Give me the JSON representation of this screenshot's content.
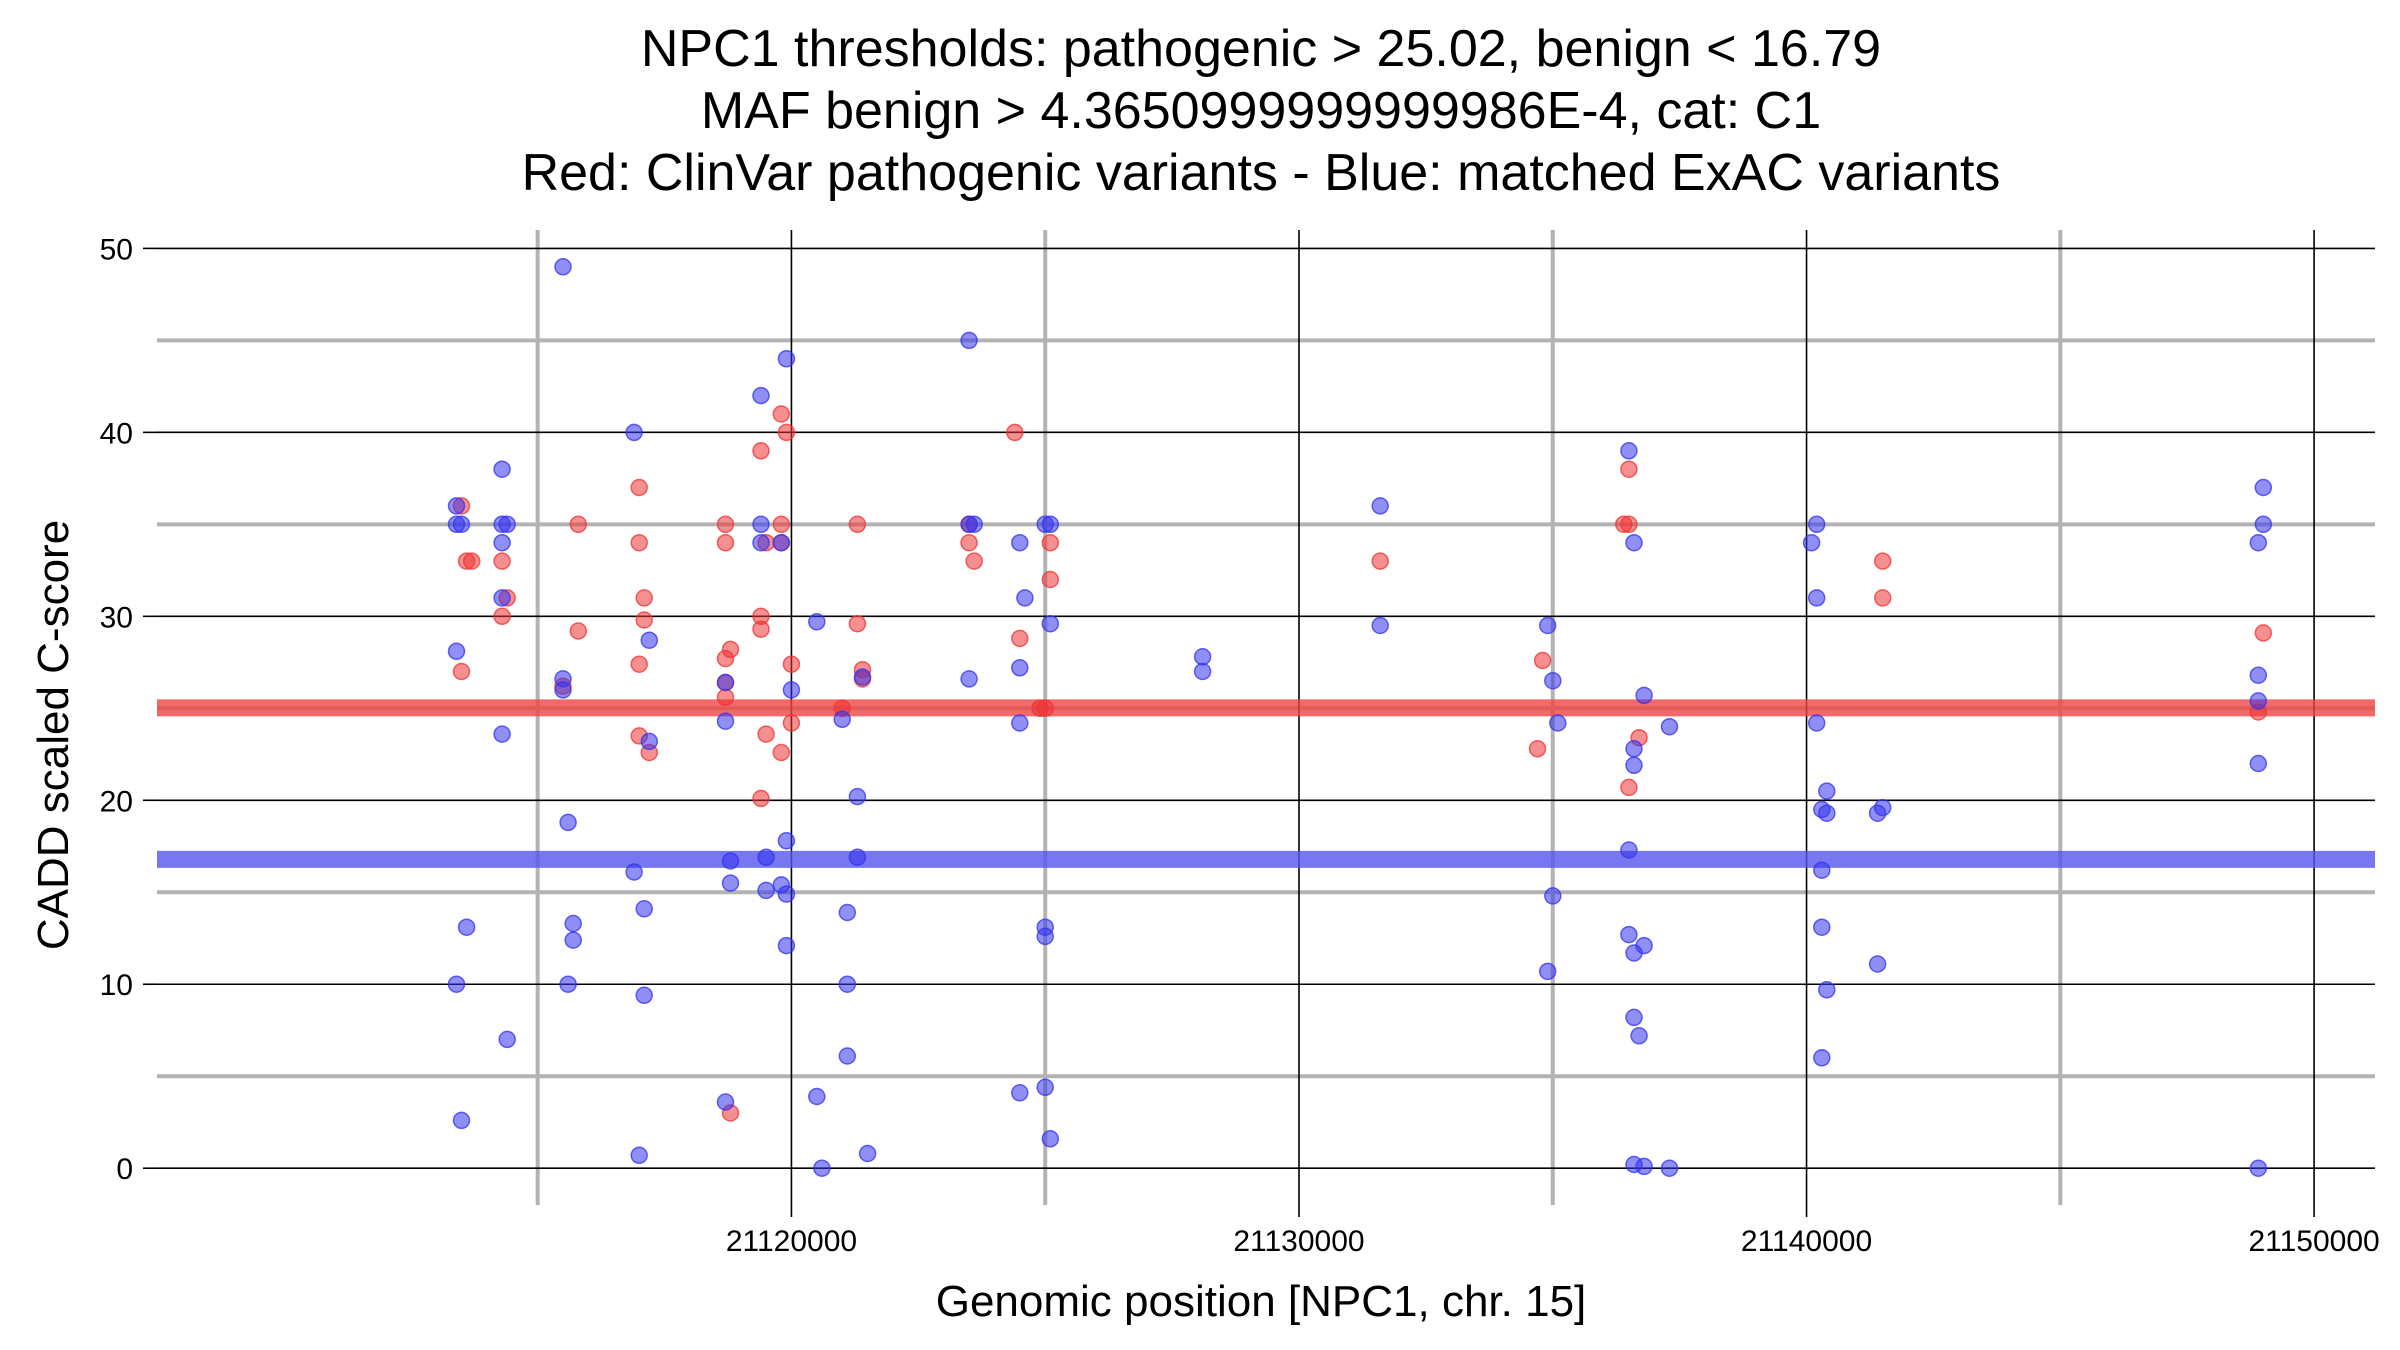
{
  "chart_data": {
    "type": "scatter",
    "title_lines": [
      "NPC1 thresholds: pathogenic > 25.02, benign < 16.79",
      "MAF benign > 4.3650999999999986E-4, cat: C1",
      "Red: ClinVar pathogenic variants - Blue: matched ExAC variants"
    ],
    "xlabel": "Genomic position [NPC1, chr. 15]",
    "ylabel": "CADD scaled C-score",
    "xlim": [
      21107500,
      21151200
    ],
    "ylim": [
      -2,
      51
    ],
    "x_ticks": [
      {
        "value": 21120000,
        "label": "21120000"
      },
      {
        "value": 21130000,
        "label": "21130000"
      },
      {
        "value": 21140000,
        "label": "21140000"
      },
      {
        "value": 21150000,
        "label": "21150000"
      }
    ],
    "x_minor_grid": [
      21115000,
      21125000,
      21135000,
      21145000
    ],
    "y_ticks": [
      {
        "value": 0,
        "label": "0"
      },
      {
        "value": 10,
        "label": "10"
      },
      {
        "value": 20,
        "label": "20"
      },
      {
        "value": 30,
        "label": "30"
      },
      {
        "value": 40,
        "label": "40"
      },
      {
        "value": 50,
        "label": "50"
      }
    ],
    "y_minor_grid": [
      5,
      15,
      25,
      35,
      45
    ],
    "grid": true,
    "thresholds": [
      {
        "name": "pathogenic",
        "value": 25.02,
        "color": "#ee4444"
      },
      {
        "name": "benign",
        "value": 16.79,
        "color": "#5555ee"
      }
    ],
    "series": [
      {
        "color": "#ee3333",
        "points": [
          [
            21113500,
            36
          ],
          [
            21113600,
            33
          ],
          [
            21113700,
            33
          ],
          [
            21113500,
            27
          ],
          [
            21114300,
            33
          ],
          [
            21114300,
            30
          ],
          [
            21114400,
            31
          ],
          [
            21115500,
            26.2
          ],
          [
            21115800,
            35
          ],
          [
            21115800,
            29.2
          ],
          [
            21117000,
            37
          ],
          [
            21117000,
            34
          ],
          [
            21117100,
            31
          ],
          [
            21117100,
            29.8
          ],
          [
            21117000,
            27.4
          ],
          [
            21117000,
            23.5
          ],
          [
            21117200,
            22.6
          ],
          [
            21118700,
            35
          ],
          [
            21118700,
            34
          ],
          [
            21118700,
            27.7
          ],
          [
            21118800,
            28.2
          ],
          [
            21118700,
            26.4
          ],
          [
            21118700,
            25.6
          ],
          [
            21118800,
            3
          ],
          [
            21119400,
            39
          ],
          [
            21119500,
            34
          ],
          [
            21119400,
            30
          ],
          [
            21119400,
            29.3
          ],
          [
            21119500,
            23.6
          ],
          [
            21119400,
            20.1
          ],
          [
            21119800,
            41
          ],
          [
            21119900,
            40
          ],
          [
            21119800,
            35
          ],
          [
            21119800,
            34
          ],
          [
            21120000,
            27.4
          ],
          [
            21120000,
            24.2
          ],
          [
            21119800,
            22.6
          ],
          [
            21121000,
            25
          ],
          [
            21121300,
            35
          ],
          [
            21121300,
            29.6
          ],
          [
            21121400,
            27.1
          ],
          [
            21121400,
            26.6
          ],
          [
            21123500,
            35
          ],
          [
            21123500,
            34
          ],
          [
            21123600,
            33
          ],
          [
            21124400,
            40
          ],
          [
            21124500,
            28.8
          ],
          [
            21124900,
            25
          ],
          [
            21125000,
            25
          ],
          [
            21125100,
            34
          ],
          [
            21125100,
            32
          ],
          [
            21131600,
            33
          ],
          [
            21134800,
            27.6
          ],
          [
            21134700,
            22.8
          ],
          [
            21136400,
            35
          ],
          [
            21136500,
            35
          ],
          [
            21136500,
            38
          ],
          [
            21136700,
            23.4
          ],
          [
            21136500,
            20.7
          ],
          [
            21141500,
            33
          ],
          [
            21141500,
            31
          ],
          [
            21149000,
            29.1
          ],
          [
            21148900,
            24.8
          ]
        ]
      },
      {
        "color": "#3333ee",
        "points": [
          [
            21113400,
            36
          ],
          [
            21113400,
            35
          ],
          [
            21113500,
            35
          ],
          [
            21113400,
            28.1
          ],
          [
            21113600,
            13.1
          ],
          [
            21113400,
            10
          ],
          [
            21113500,
            2.6
          ],
          [
            21114300,
            38
          ],
          [
            21114300,
            35
          ],
          [
            21114400,
            35
          ],
          [
            21114300,
            34
          ],
          [
            21114300,
            31
          ],
          [
            21114300,
            23.6
          ],
          [
            21114400,
            7
          ],
          [
            21115500,
            49
          ],
          [
            21115500,
            26.6
          ],
          [
            21115500,
            26
          ],
          [
            21115600,
            18.8
          ],
          [
            21115700,
            13.3
          ],
          [
            21115700,
            12.4
          ],
          [
            21115600,
            10
          ],
          [
            21116900,
            40
          ],
          [
            21117200,
            28.7
          ],
          [
            21117200,
            23.2
          ],
          [
            21116900,
            16.1
          ],
          [
            21117100,
            14.1
          ],
          [
            21117100,
            9.4
          ],
          [
            21117000,
            0.7
          ],
          [
            21118700,
            26.4
          ],
          [
            21118700,
            24.3
          ],
          [
            21118800,
            16.7
          ],
          [
            21118800,
            15.5
          ],
          [
            21118700,
            3.6
          ],
          [
            21119400,
            42
          ],
          [
            21119400,
            35
          ],
          [
            21119400,
            34
          ],
          [
            21119800,
            34
          ],
          [
            21119900,
            44
          ],
          [
            21120000,
            26
          ],
          [
            21119500,
            16.9
          ],
          [
            21119500,
            15.1
          ],
          [
            21119900,
            17.8
          ],
          [
            21119800,
            15.4
          ],
          [
            21119900,
            14.9
          ],
          [
            21119900,
            12.1
          ],
          [
            21120500,
            29.7
          ],
          [
            21120500,
            3.9
          ],
          [
            21120600,
            0
          ],
          [
            21121000,
            24.4
          ],
          [
            21121300,
            20.2
          ],
          [
            21121400,
            26.7
          ],
          [
            21121300,
            16.9
          ],
          [
            21121100,
            13.9
          ],
          [
            21121100,
            10
          ],
          [
            21121100,
            6.1
          ],
          [
            21121500,
            0.8
          ],
          [
            21123500,
            45
          ],
          [
            21123500,
            35
          ],
          [
            21123600,
            35
          ],
          [
            21123500,
            26.6
          ],
          [
            21124500,
            34
          ],
          [
            21124600,
            31
          ],
          [
            21124500,
            27.2
          ],
          [
            21124500,
            24.2
          ],
          [
            21124500,
            4.1
          ],
          [
            21125000,
            35
          ],
          [
            21125100,
            35
          ],
          [
            21125100,
            29.6
          ],
          [
            21125000,
            13.1
          ],
          [
            21125000,
            12.6
          ],
          [
            21125000,
            4.4
          ],
          [
            21125100,
            1.6
          ],
          [
            21128100,
            27.8
          ],
          [
            21128100,
            27
          ],
          [
            21131600,
            36
          ],
          [
            21131600,
            29.5
          ],
          [
            21134900,
            29.5
          ],
          [
            21135000,
            26.5
          ],
          [
            21135100,
            24.2
          ],
          [
            21135000,
            14.8
          ],
          [
            21134900,
            10.7
          ],
          [
            21136500,
            39
          ],
          [
            21136600,
            34
          ],
          [
            21136800,
            25.7
          ],
          [
            21136600,
            22.8
          ],
          [
            21136600,
            21.9
          ],
          [
            21137300,
            24
          ],
          [
            21136500,
            17.3
          ],
          [
            21136500,
            12.7
          ],
          [
            21136600,
            11.7
          ],
          [
            21136800,
            12.1
          ],
          [
            21136600,
            8.2
          ],
          [
            21136700,
            7.2
          ],
          [
            21136600,
            0.2
          ],
          [
            21136800,
            0.1
          ],
          [
            21137300,
            0
          ],
          [
            21140200,
            35
          ],
          [
            21140100,
            34
          ],
          [
            21140200,
            31
          ],
          [
            21140200,
            24.2
          ],
          [
            21140400,
            20.5
          ],
          [
            21140300,
            19.5
          ],
          [
            21140400,
            19.3
          ],
          [
            21140300,
            16.2
          ],
          [
            21140300,
            13.1
          ],
          [
            21140400,
            9.7
          ],
          [
            21140300,
            6
          ],
          [
            21141400,
            19.3
          ],
          [
            21141500,
            19.6
          ],
          [
            21141400,
            11.1
          ],
          [
            21149000,
            37
          ],
          [
            21149000,
            35
          ],
          [
            21148900,
            34
          ],
          [
            21148900,
            26.8
          ],
          [
            21148900,
            25.4
          ],
          [
            21148900,
            22
          ],
          [
            21148900,
            0
          ]
        ]
      }
    ]
  }
}
